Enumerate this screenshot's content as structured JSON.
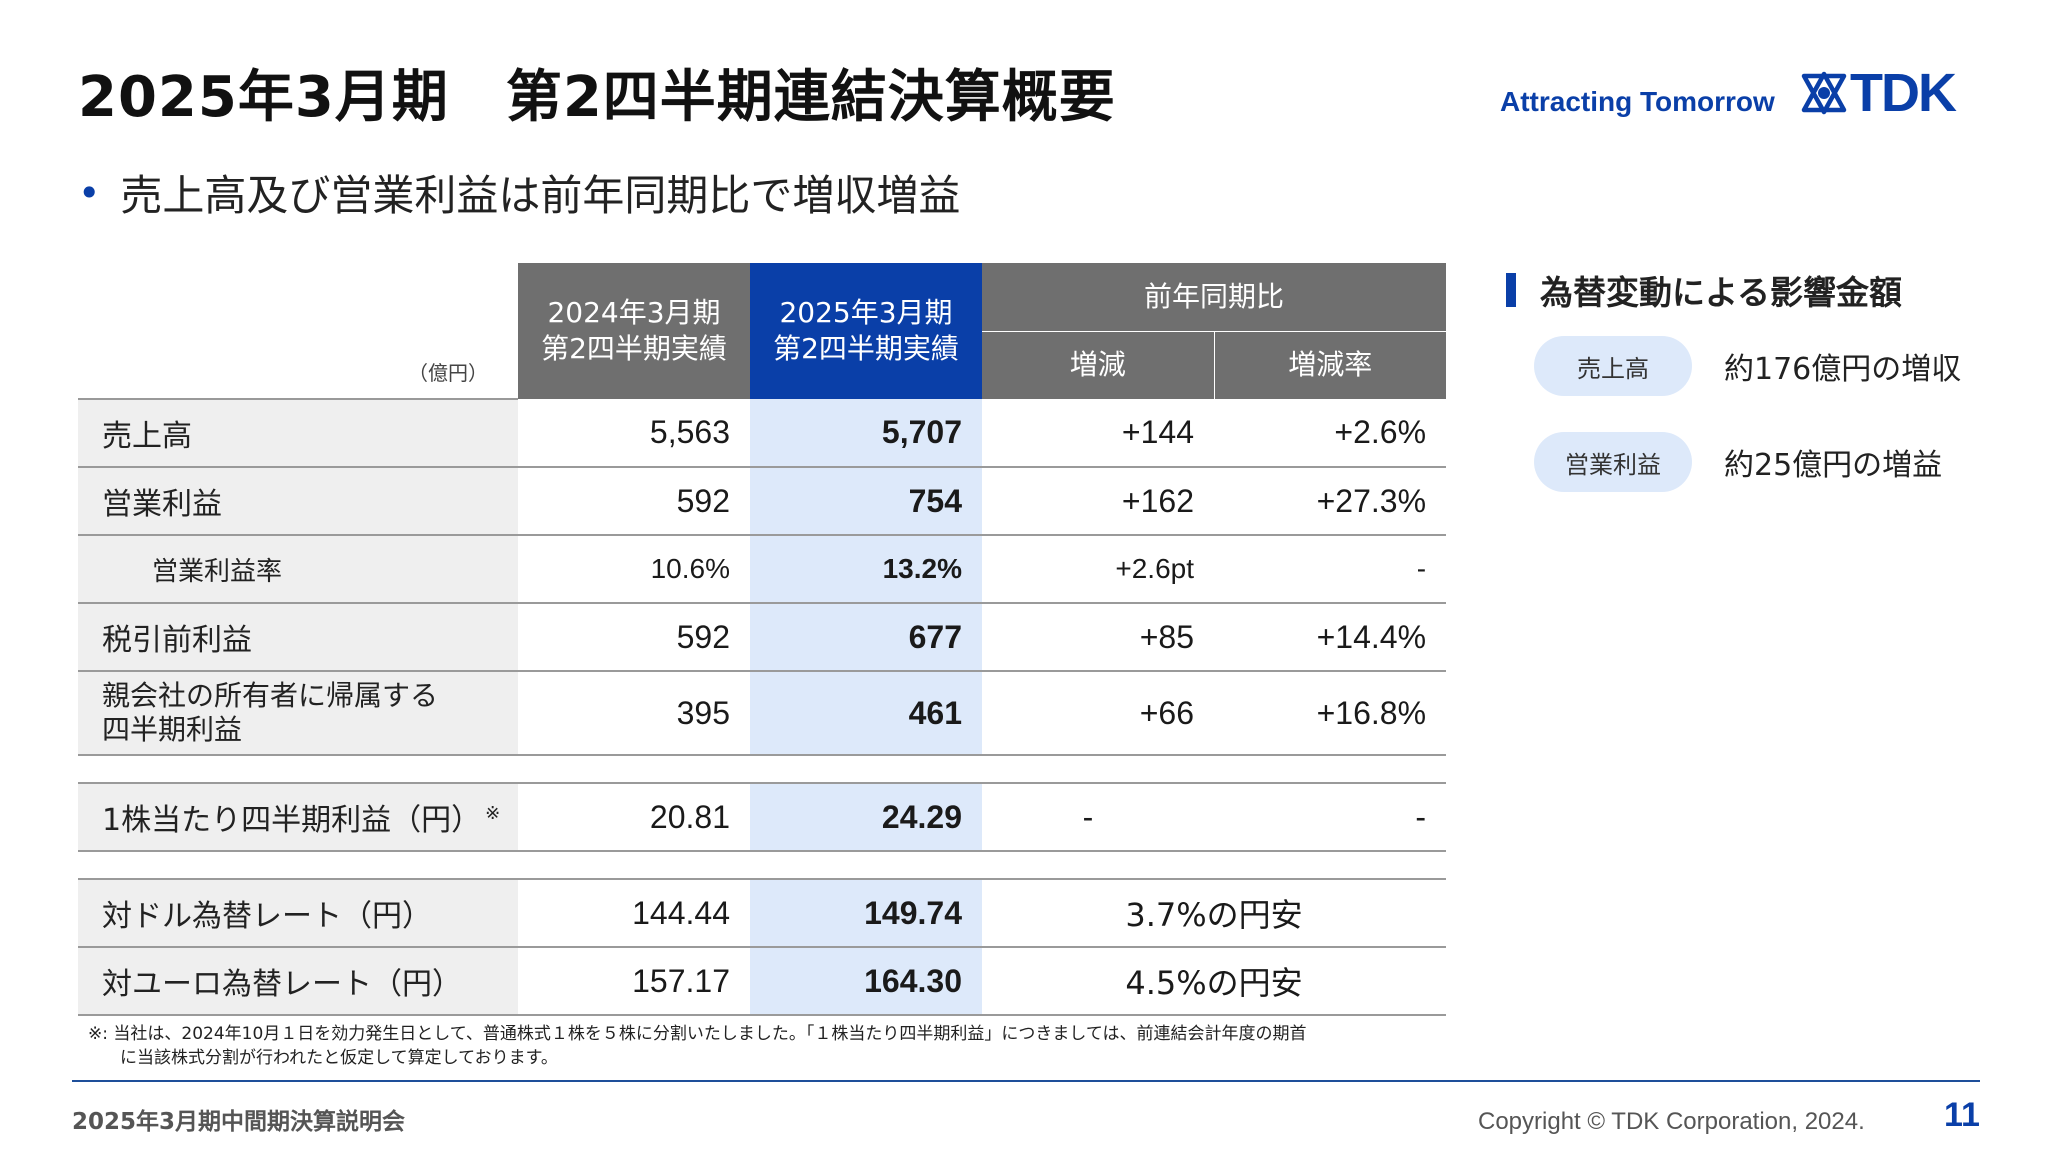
{
  "header": {
    "title": "2025年3月期　第2四半期連結決算概要",
    "tagline": "Attracting Tomorrow",
    "logo_text": "TDK",
    "logo_icon": "tdk-star-icon"
  },
  "summary": {
    "bullet": "売上高及び営業利益は前年同期比で増収増益"
  },
  "table": {
    "unit_label": "（億円）",
    "col_prev": [
      "2024年3月期",
      "第2四半期実績"
    ],
    "col_curr": [
      "2025年3月期",
      "第2四半期実績"
    ],
    "col_yoy": "前年同期比",
    "col_change": "増減",
    "col_rate": "増減率",
    "rows": [
      {
        "label": "売上高",
        "prev": "5,563",
        "curr": "5,707",
        "change": "+144",
        "rate": "+2.6%"
      },
      {
        "label": "営業利益",
        "prev": "592",
        "curr": "754",
        "change": "+162",
        "rate": "+27.3%"
      },
      {
        "label": "営業利益率",
        "prev": "10.6%",
        "curr": "13.2%",
        "change": "+2.6pt",
        "rate": "-"
      },
      {
        "label": "税引前利益",
        "prev": "592",
        "curr": "677",
        "change": "+85",
        "rate": "+14.4%"
      },
      {
        "label_line1": "親会社の所有者に帰属する",
        "label_line2": "四半期利益",
        "prev": "395",
        "curr": "461",
        "change": "+66",
        "rate": "+16.8%"
      }
    ],
    "eps": {
      "label": "1株当たり四半期利益（円）",
      "mark": "※",
      "prev": "20.81",
      "curr": "24.29",
      "change": "-",
      "rate": "-"
    },
    "fx_rows": [
      {
        "label": "対ドル為替レート（円）",
        "prev": "144.44",
        "curr": "149.74",
        "note": "3.7%の円安"
      },
      {
        "label": "対ユーロ為替レート（円）",
        "prev": "157.17",
        "curr": "164.30",
        "note": "4.5%の円安"
      }
    ]
  },
  "footnote": {
    "line1": "※: 当社は、2024年10月１日を効力発生日として、普通株式１株を５株に分割いたしました。「１株当たり四半期利益」につきましては、前連結会計年度の期首",
    "line2": "に当該株式分割が行われたと仮定して算定しております。"
  },
  "fx_impact": {
    "title": "為替変動による影響金額",
    "items": [
      {
        "badge": "売上高",
        "text": "約176億円の増収"
      },
      {
        "badge": "営業利益",
        "text": "約25億円の増益"
      }
    ]
  },
  "footer": {
    "event": "2025年3月期中間期決算説明会",
    "copyright": "Copyright © TDK Corporation, 2024.",
    "page": "11"
  },
  "colors": {
    "brand_blue": "#0a3fa8",
    "header_gray": "#6f6f6f",
    "highlight_blue": "#dde9fa",
    "label_gray": "#efefef"
  }
}
